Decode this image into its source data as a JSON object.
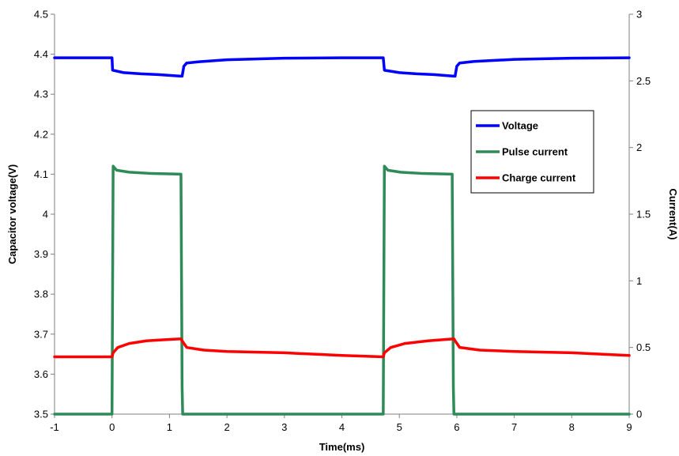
{
  "chart_data": {
    "type": "line",
    "xlabel": "Time(ms)",
    "ylabel_left": "Capacitor voltage(V)",
    "ylabel_right": "Current(A)",
    "xlim": [
      -1,
      9
    ],
    "ylim_left": [
      3.5,
      4.5
    ],
    "ylim_right": [
      0,
      3
    ],
    "x_ticks": [
      -1,
      0,
      1,
      2,
      3,
      4,
      5,
      6,
      7,
      8,
      9
    ],
    "y_left_ticks": [
      3.5,
      3.6,
      3.7,
      3.8,
      3.9,
      4,
      4.1,
      4.2,
      4.3,
      4.4,
      4.5
    ],
    "y_right_ticks": [
      0,
      0.5,
      1,
      1.5,
      2,
      2.5,
      3
    ],
    "grid": false,
    "legend": "upper-right inside",
    "series": [
      {
        "name": "Voltage",
        "axis": "left",
        "color": "#0000ff",
        "points": [
          [
            -1,
            4.391
          ],
          [
            0,
            4.391
          ],
          [
            0.01,
            4.36
          ],
          [
            0.2,
            4.354
          ],
          [
            0.5,
            4.351
          ],
          [
            0.8,
            4.349
          ],
          [
            1.2,
            4.345
          ],
          [
            1.22,
            4.345
          ],
          [
            1.25,
            4.37
          ],
          [
            1.3,
            4.378
          ],
          [
            1.5,
            4.381
          ],
          [
            2,
            4.386
          ],
          [
            3,
            4.39
          ],
          [
            4,
            4.391
          ],
          [
            4.72,
            4.391
          ],
          [
            4.74,
            4.36
          ],
          [
            5,
            4.354
          ],
          [
            5.3,
            4.351
          ],
          [
            5.6,
            4.349
          ],
          [
            5.95,
            4.345
          ],
          [
            5.97,
            4.345
          ],
          [
            6,
            4.37
          ],
          [
            6.05,
            4.378
          ],
          [
            6.3,
            4.382
          ],
          [
            7,
            4.387
          ],
          [
            8,
            4.39
          ],
          [
            9,
            4.391
          ]
        ]
      },
      {
        "name": "Pulse current",
        "axis": "right",
        "color": "#2e8b57",
        "points": [
          [
            -1,
            0
          ],
          [
            0,
            0
          ],
          [
            0.02,
            1.86
          ],
          [
            0.08,
            1.83
          ],
          [
            0.3,
            1.815
          ],
          [
            0.7,
            1.805
          ],
          [
            1.2,
            1.8
          ],
          [
            1.22,
            0.2
          ],
          [
            1.23,
            0
          ],
          [
            9,
            0
          ],
          [
            4.72,
            0
          ]
        ]
      },
      {
        "name": "Charge current",
        "axis": "right",
        "color": "#ff0000",
        "points": [
          [
            -1,
            0.43
          ],
          [
            0,
            0.43
          ],
          [
            0.02,
            0.46
          ],
          [
            0.1,
            0.5
          ],
          [
            0.3,
            0.53
          ],
          [
            0.6,
            0.55
          ],
          [
            1,
            0.56
          ],
          [
            1.2,
            0.565
          ],
          [
            1.22,
            0.55
          ],
          [
            1.3,
            0.5
          ],
          [
            1.6,
            0.48
          ],
          [
            2,
            0.47
          ],
          [
            3,
            0.46
          ],
          [
            4,
            0.44
          ],
          [
            4.72,
            0.43
          ],
          [
            4.74,
            0.46
          ],
          [
            4.85,
            0.5
          ],
          [
            5.1,
            0.53
          ],
          [
            5.5,
            0.55
          ],
          [
            5.95,
            0.565
          ],
          [
            5.97,
            0.55
          ],
          [
            6.05,
            0.5
          ],
          [
            6.4,
            0.48
          ],
          [
            7,
            0.47
          ],
          [
            8,
            0.46
          ],
          [
            9,
            0.44
          ]
        ]
      }
    ]
  }
}
